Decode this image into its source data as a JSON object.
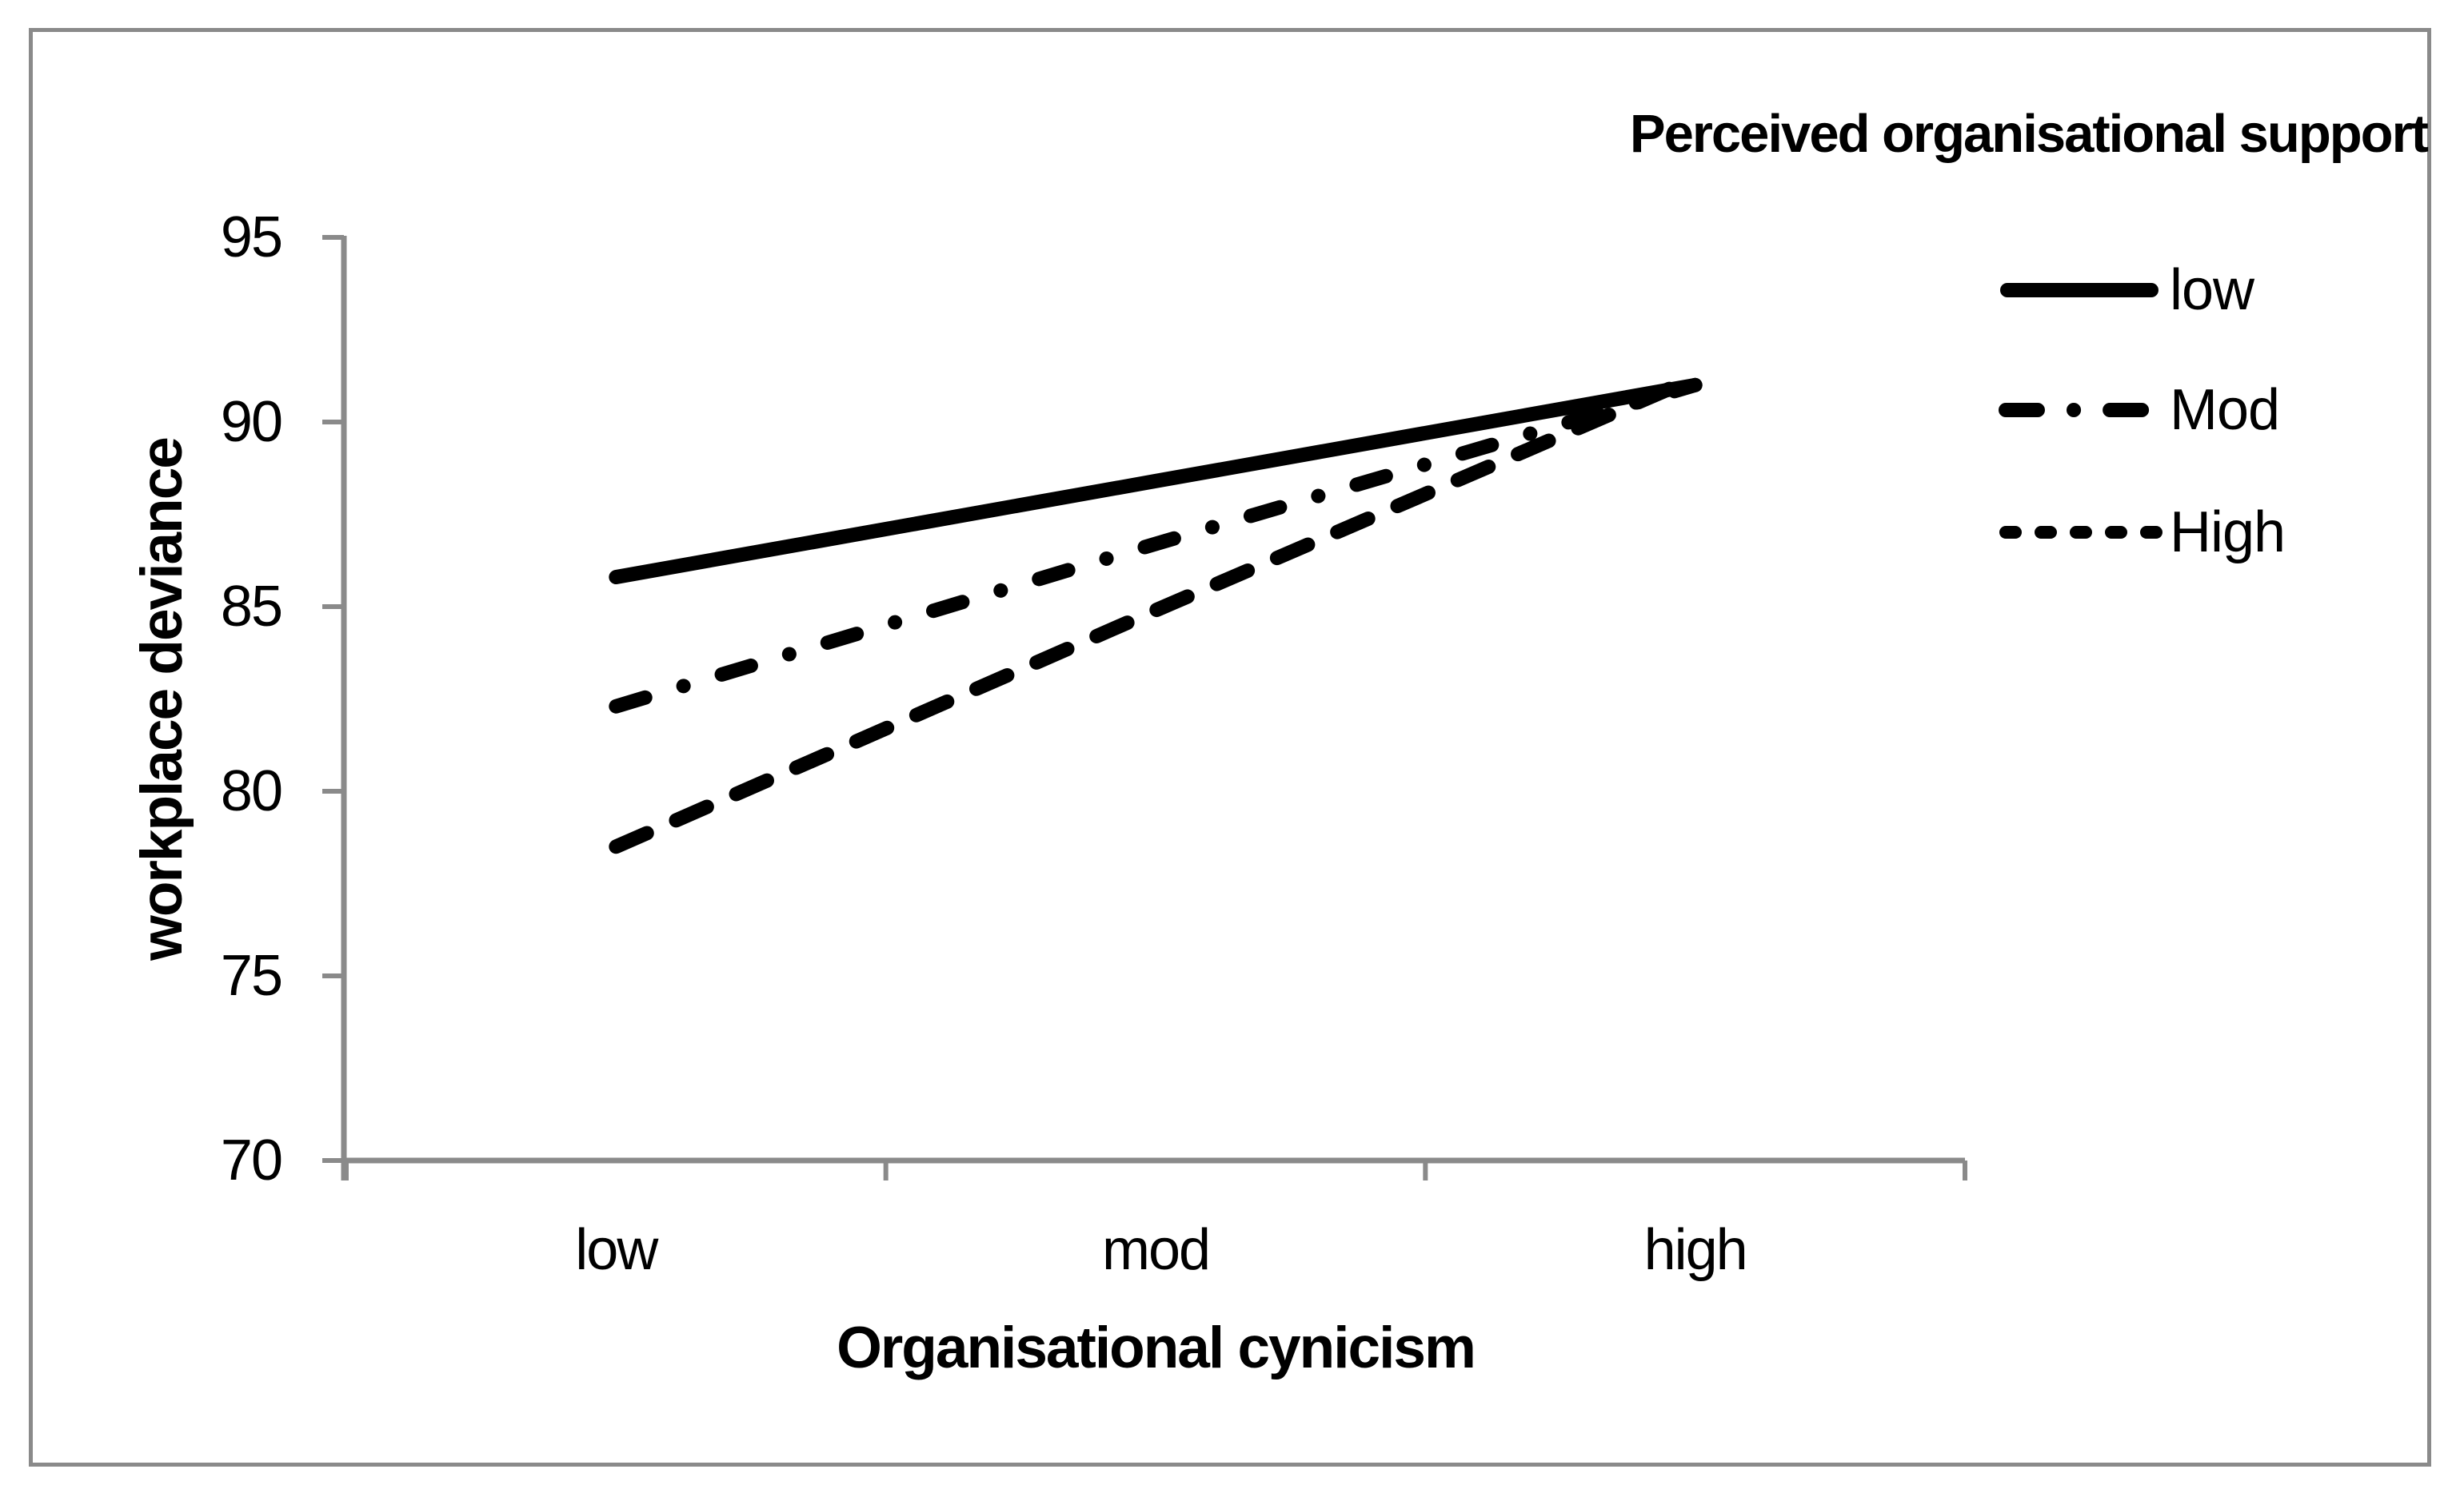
{
  "chart_data": {
    "type": "line",
    "categories": [
      "low",
      "mod",
      "high"
    ],
    "series": [
      {
        "name": "low",
        "style": "solid",
        "values": [
          85.8,
          88.4,
          91.0
        ]
      },
      {
        "name": "Mod",
        "style": "dash-dot",
        "values": [
          82.3,
          86.7,
          91.0
        ]
      },
      {
        "name": "High",
        "style": "dashed",
        "values": [
          78.5,
          84.9,
          91.2
        ]
      }
    ],
    "xlabel": "Organisational cynicism",
    "ylabel": "workplace deviance",
    "ylim": [
      70,
      95
    ],
    "yticks": [
      70,
      75,
      80,
      85,
      90,
      95
    ],
    "grid": false,
    "legend_title": "Perceived organisational support",
    "legend_position": "right",
    "line_color": "#000000",
    "axis_color": "#8a8a8a"
  },
  "legend": {
    "title": "Perceived organisational support",
    "items": [
      {
        "label": "low"
      },
      {
        "label": "Mod"
      },
      {
        "label": "High"
      }
    ]
  },
  "axes": {
    "x_title": "Organisational cynicism",
    "y_title": "workplace deviance"
  }
}
